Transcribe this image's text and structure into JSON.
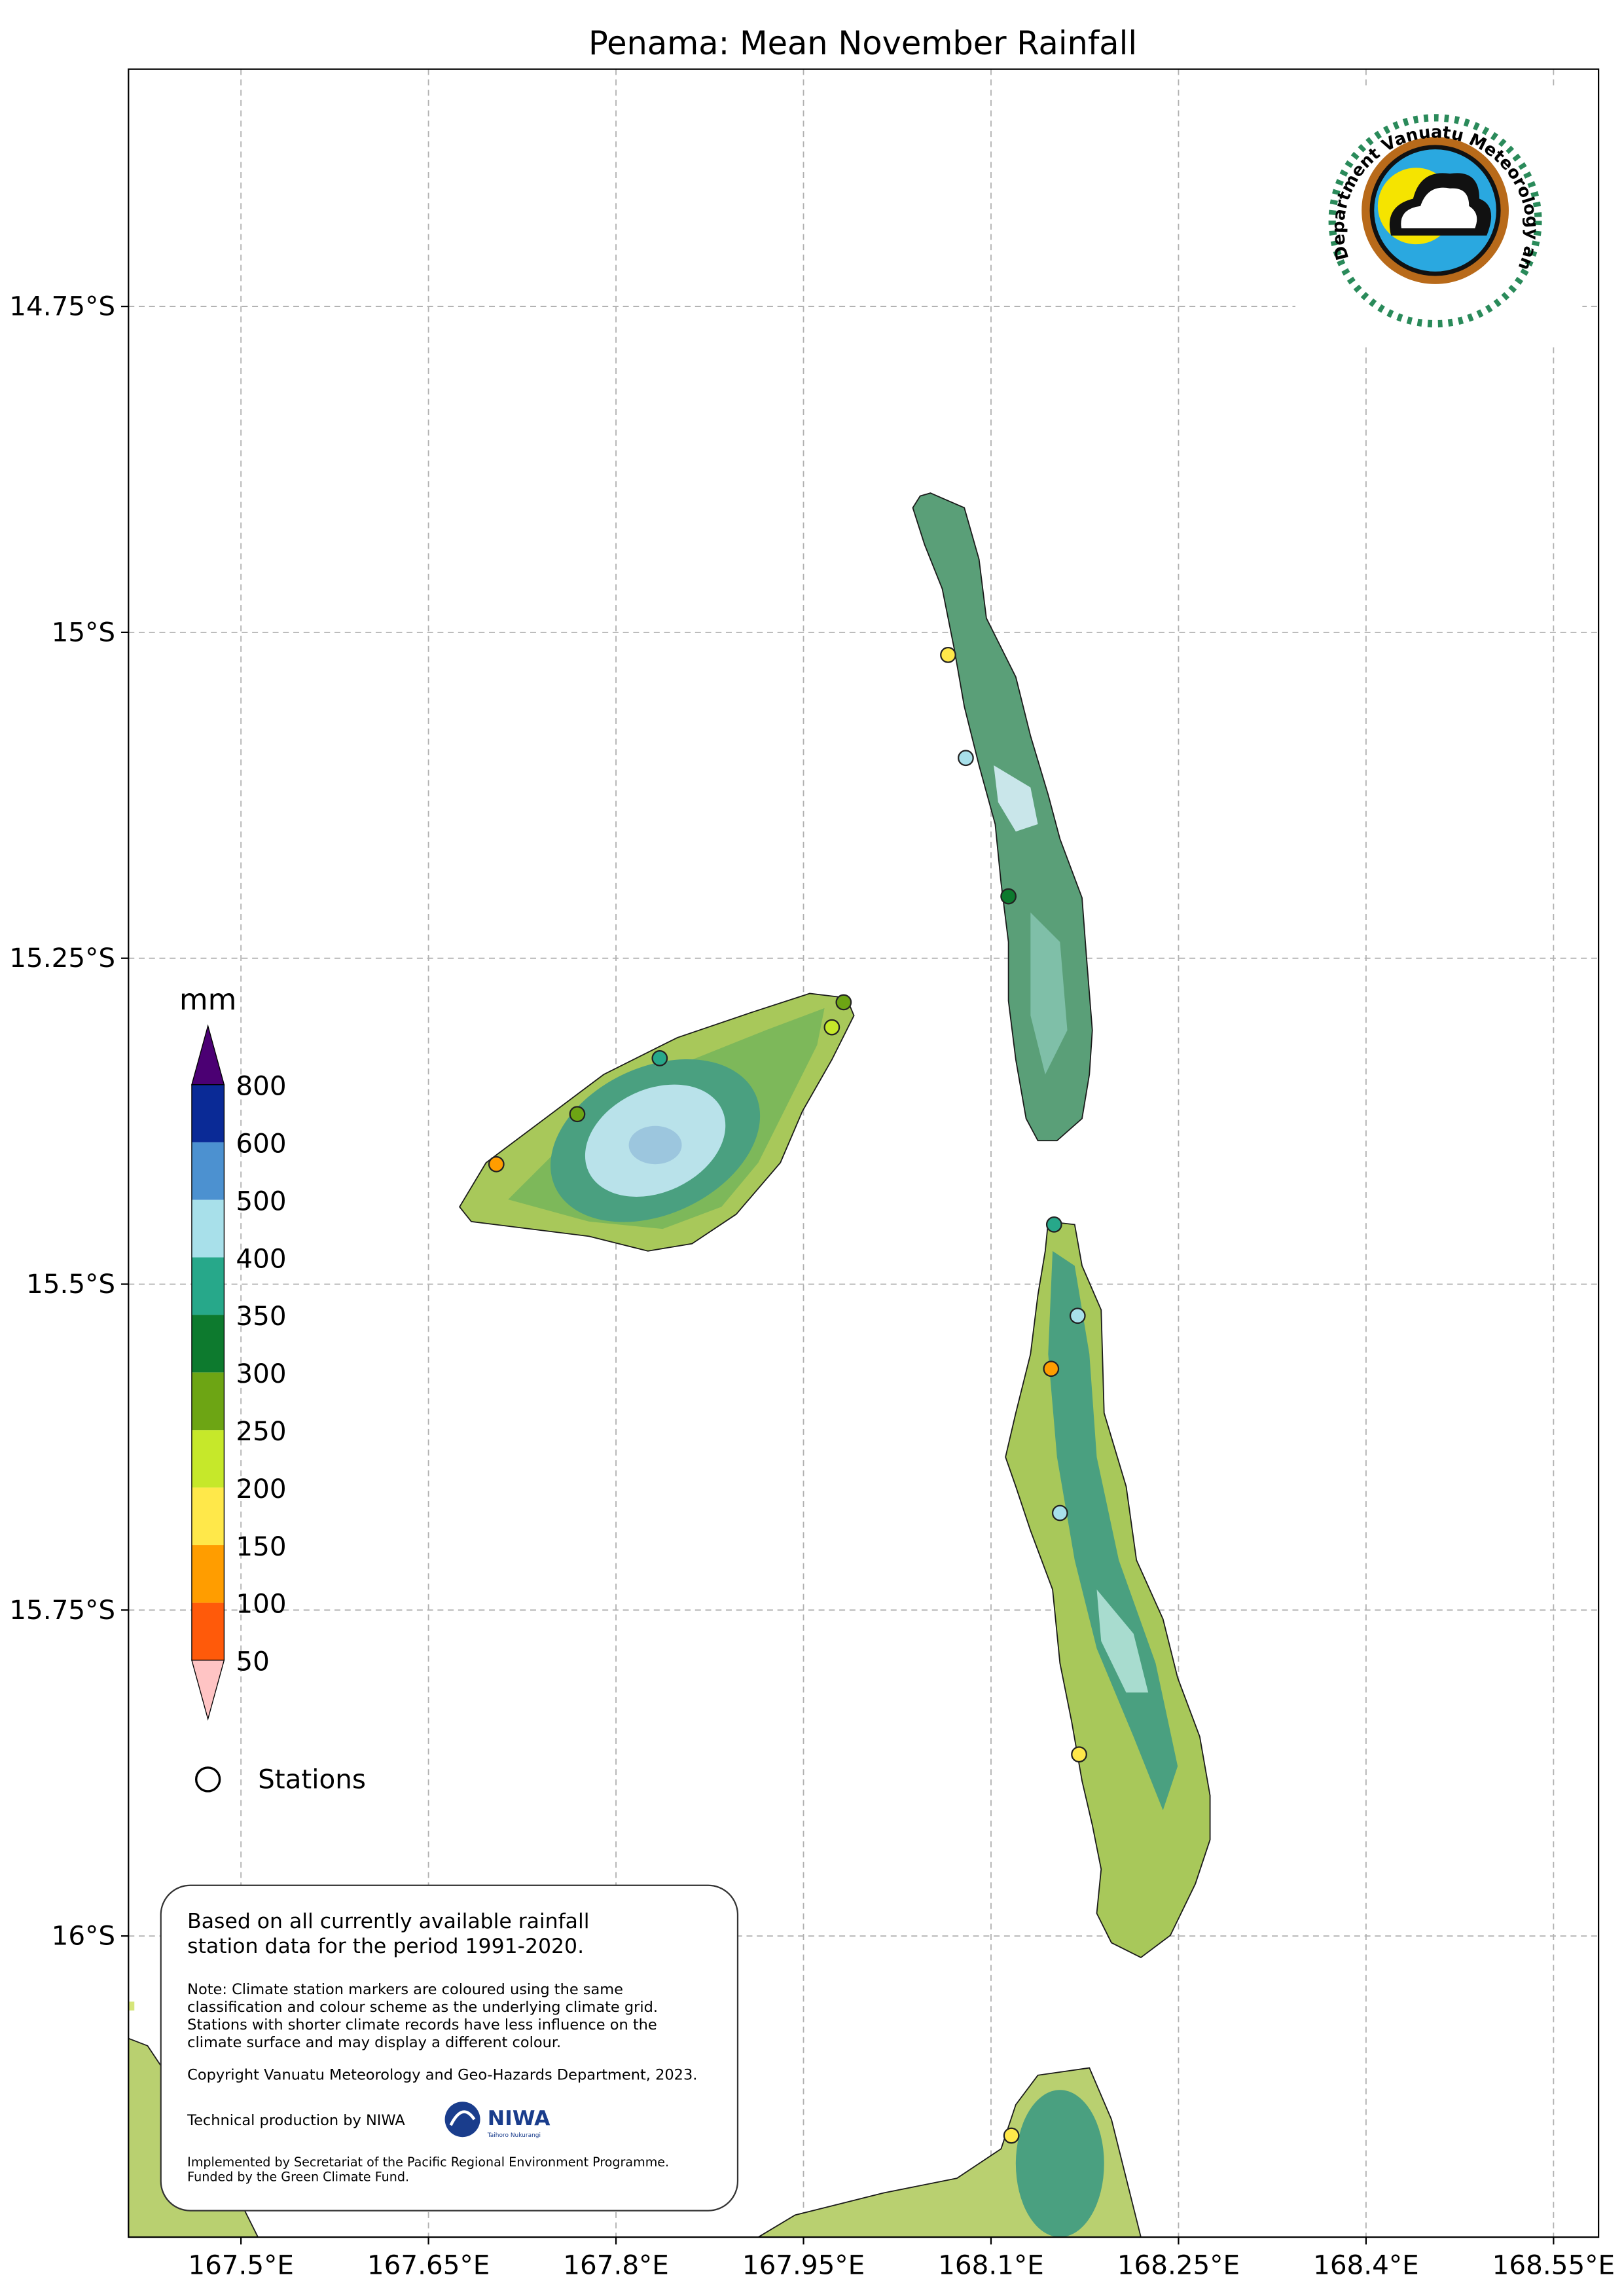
{
  "title": "Penama: Mean November Rainfall",
  "map": {
    "lon_lim": [
      167.41,
      168.586
    ],
    "lat_lim": [
      -16.231,
      -14.568
    ],
    "lon_ticks": [
      {
        "value": 167.5,
        "label": "167.5°E"
      },
      {
        "value": 167.65,
        "label": "167.65°E"
      },
      {
        "value": 167.8,
        "label": "167.8°E"
      },
      {
        "value": 167.95,
        "label": "167.95°E"
      },
      {
        "value": 168.1,
        "label": "168.1°E"
      },
      {
        "value": 168.25,
        "label": "168.25°E"
      },
      {
        "value": 168.4,
        "label": "168.4°E"
      },
      {
        "value": 168.55,
        "label": "168.55°E"
      }
    ],
    "lat_ticks": [
      {
        "value": -14.75,
        "label": "14.75°S"
      },
      {
        "value": -15,
        "label": "15°S"
      },
      {
        "value": -15.25,
        "label": "15.25°S"
      },
      {
        "value": -15.5,
        "label": "15.5°S"
      },
      {
        "value": -15.75,
        "label": "15.75°S"
      },
      {
        "value": -16,
        "label": "16°S"
      }
    ],
    "grid": true
  },
  "legend": {
    "unit": "mm",
    "levels": [
      50,
      100,
      150,
      200,
      250,
      300,
      350,
      400,
      500,
      600,
      800
    ],
    "colors": [
      "#ffc4c4",
      "#ff5a0a",
      "#ff9d00",
      "#ffe84a",
      "#c6e82a",
      "#6da514",
      "#0d7a2e",
      "#27a88a",
      "#a8e0ea",
      "#4c91d0",
      "#0a2a96",
      "#4b0073"
    ],
    "stations_label": "Stations"
  },
  "note": {
    "lead": [
      "Based on all currently available rainfall",
      "station data for the period 1991-2020."
    ],
    "detail": [
      "Note: Climate station markers are coloured using the same",
      "classification and colour scheme as the underlying climate grid.",
      "Stations with shorter climate records have less influence on the",
      "climate surface and may display a different colour."
    ],
    "copyright": "Copyright Vanuatu Meteorology and Geo-Hazards Department, 2023.",
    "production": "Technical production by NIWA",
    "funding": [
      "Implemented by Secretariat of the Pacific Regional Environment Programme.",
      "Funded by the Green Climate Fund."
    ]
  },
  "logos": {
    "vmgd": "Department Vanuatu Meteorology and Geo-Hazards",
    "niwa": "NIWA",
    "niwa_sub": "Taihoro Nukurangi"
  }
}
